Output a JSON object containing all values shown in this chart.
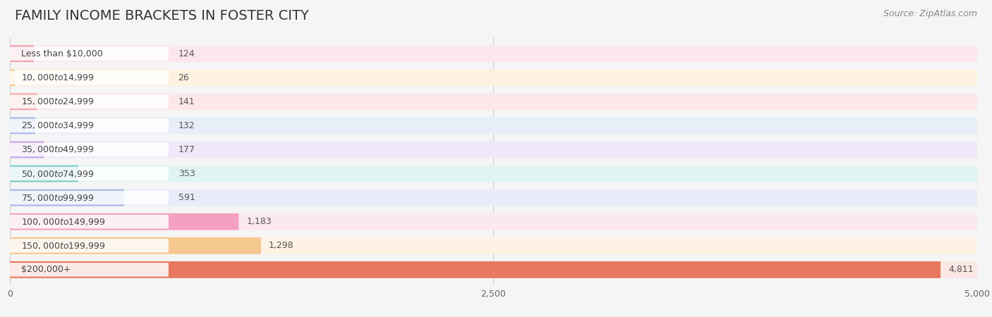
{
  "title": "FAMILY INCOME BRACKETS IN FOSTER CITY",
  "source": "Source: ZipAtlas.com",
  "categories": [
    "Less than $10,000",
    "$10,000 to $14,999",
    "$15,000 to $24,999",
    "$25,000 to $34,999",
    "$35,000 to $49,999",
    "$50,000 to $74,999",
    "$75,000 to $99,999",
    "$100,000 to $149,999",
    "$150,000 to $199,999",
    "$200,000+"
  ],
  "values": [
    124,
    26,
    141,
    132,
    177,
    353,
    591,
    1183,
    1298,
    4811
  ],
  "bar_colors": [
    "#f5a0b0",
    "#f5c98a",
    "#f5a8a8",
    "#a8bce8",
    "#c8a8e8",
    "#7dccc8",
    "#a8b8e8",
    "#f5a0c0",
    "#f5c890",
    "#e87860"
  ],
  "bar_bg_colors": [
    "#fce8ec",
    "#fdf2e0",
    "#fce8e8",
    "#e8eef8",
    "#f0e8f8",
    "#e0f4f4",
    "#e8ecf8",
    "#fce8f0",
    "#fdf2e4",
    "#fbe8e4"
  ],
  "value_labels": [
    "124",
    "26",
    "141",
    "132",
    "177",
    "353",
    "591",
    "1,183",
    "1,298",
    "4,811"
  ],
  "xlim": [
    0,
    5000
  ],
  "xtick_labels": [
    "0",
    "2,500",
    "5,000"
  ],
  "background_color": "#f5f5f5",
  "row_bg_color": "#ebebeb",
  "title_fontsize": 14,
  "label_fontsize": 9,
  "value_fontsize": 9,
  "source_fontsize": 9
}
